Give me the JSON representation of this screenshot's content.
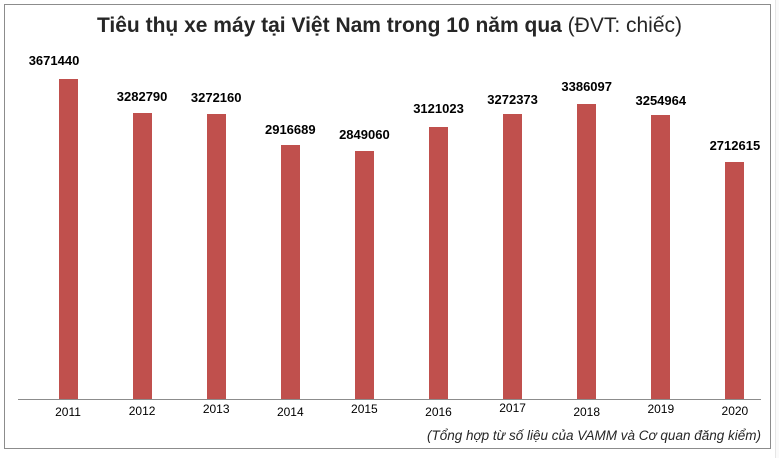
{
  "chart_data": {
    "type": "bar",
    "title": "Tiêu thụ xe máy tại Việt Nam trong 10 năm qua",
    "title_unit": "(ĐVT: chiếc)",
    "xlabel": "",
    "ylabel": "",
    "categories": [
      "2011",
      "2012",
      "2013",
      "2014",
      "2015",
      "2016",
      "2017",
      "2018",
      "2019",
      "2020"
    ],
    "values": [
      3671440,
      3282790,
      3272160,
      2916689,
      2849060,
      3121023,
      3272373,
      3386097,
      3254964,
      2712615
    ],
    "data_labels": [
      "3671440",
      "3282790",
      "3272160",
      "2916689",
      "2849060",
      "3121023",
      "3272373",
      "3386097",
      "3254964",
      "2712615"
    ],
    "bar_color": "#c0504d",
    "grid": false,
    "legend": "none",
    "ylim": [
      0,
      3900000
    ],
    "annotation": "(Tổng hợp từ số liệu của VAMM và Cơ quan đăng kiểm)"
  }
}
